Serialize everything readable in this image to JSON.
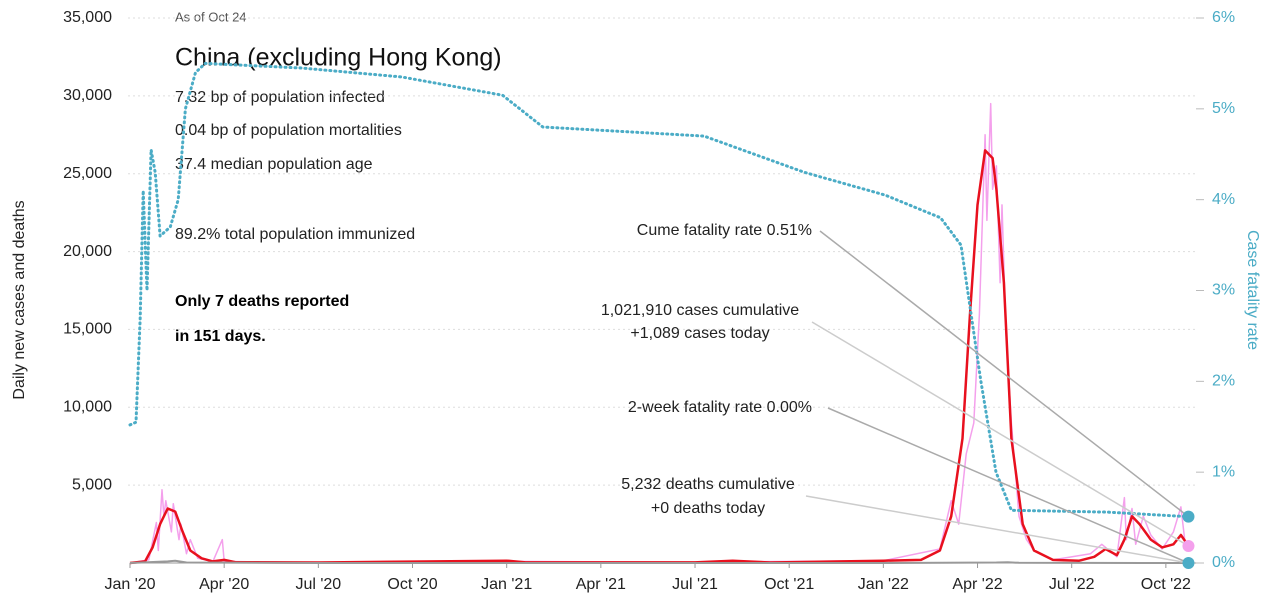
{
  "chart_data": {
    "type": "line",
    "title": "China (excluding Hong Kong)",
    "subtitle": "As of Oct 24",
    "ylabel": "Daily new cases and deaths",
    "y2label": "Case fatality rate",
    "stats": [
      "7.32 bp of population infected",
      "0.04 bp of population mortalities",
      "37.4 median population age",
      "89.2% total population immunized"
    ],
    "note": [
      "Only 7 deaths reported",
      "in 151 days."
    ],
    "annotations": [
      "Cume fatality rate 0.51%",
      "1,021,910 cases cumulative",
      "+1,089 cases today",
      "2-week fatality rate 0.00%",
      "5,232 deaths cumulative",
      "+0 deaths today"
    ],
    "xlim": [
      2020.0,
      2022.83
    ],
    "xticks": [
      {
        "value": 2020.0,
        "label": "Jan '20"
      },
      {
        "value": 2020.25,
        "label": "Apr '20"
      },
      {
        "value": 2020.5,
        "label": "Jul '20"
      },
      {
        "value": 2020.75,
        "label": "Oct '20"
      },
      {
        "value": 2021.0,
        "label": "Jan '21"
      },
      {
        "value": 2021.25,
        "label": "Apr '21"
      },
      {
        "value": 2021.5,
        "label": "Jul '21"
      },
      {
        "value": 2021.75,
        "label": "Oct '21"
      },
      {
        "value": 2022.0,
        "label": "Jan '22"
      },
      {
        "value": 2022.25,
        "label": "Apr '22"
      },
      {
        "value": 2022.5,
        "label": "Jul '22"
      },
      {
        "value": 2022.75,
        "label": "Oct '22"
      }
    ],
    "ylim": [
      0,
      35000
    ],
    "yticks": [
      {
        "value": 5000,
        "label": "5,000"
      },
      {
        "value": 10000,
        "label": "10,000"
      },
      {
        "value": 15000,
        "label": "15,000"
      },
      {
        "value": 20000,
        "label": "20,000"
      },
      {
        "value": 25000,
        "label": "25,000"
      },
      {
        "value": 30000,
        "label": "30,000"
      },
      {
        "value": 35000,
        "label": "35,000"
      }
    ],
    "y2lim": [
      0,
      6
    ],
    "y2ticks": [
      {
        "value": 0,
        "label": "0%"
      },
      {
        "value": 1,
        "label": "1%"
      },
      {
        "value": 2,
        "label": "2%"
      },
      {
        "value": 3,
        "label": "3%"
      },
      {
        "value": 4,
        "label": "4%"
      },
      {
        "value": 5,
        "label": "5%"
      },
      {
        "value": 6,
        "label": "6%"
      }
    ],
    "grid": true,
    "series": [
      {
        "color": "#f4a0ec",
        "width": 1.5,
        "axis": "y",
        "x": [
          2020.0,
          2020.05,
          2020.07,
          2020.075,
          2020.085,
          2020.09,
          2020.095,
          2020.11,
          2020.115,
          2020.13,
          2020.135,
          2020.15,
          2020.16,
          2020.18,
          2020.22,
          2020.245,
          2020.25,
          2020.5,
          2021.0,
          2021.5,
          2022.0,
          2022.15,
          2022.18,
          2022.2,
          2022.22,
          2022.24,
          2022.255,
          2022.27,
          2022.275,
          2022.285,
          2022.29,
          2022.3,
          2022.31,
          2022.315,
          2022.325,
          2022.34,
          2022.36,
          2022.38,
          2022.4,
          2022.45,
          2022.55,
          2022.58,
          2022.62,
          2022.64,
          2022.645,
          2022.66,
          2022.67,
          2022.69,
          2022.71,
          2022.74,
          2022.77,
          2022.79,
          2022.8,
          2022.81
        ],
        "values": [
          0,
          200,
          2600,
          800,
          4700,
          3000,
          4000,
          2000,
          3800,
          1500,
          2500,
          600,
          1500,
          300,
          100,
          1500,
          100,
          20,
          100,
          50,
          150,
          900,
          4000,
          2500,
          7000,
          9000,
          16000,
          27500,
          22000,
          29500,
          24000,
          25500,
          18000,
          23000,
          15000,
          9000,
          3000,
          1500,
          800,
          200,
          600,
          1200,
          400,
          4200,
          1500,
          3500,
          1200,
          3000,
          1800,
          900,
          2000,
          3600,
          1500,
          1089
        ]
      },
      {
        "color": "#e8101e",
        "width": 2.5,
        "axis": "y",
        "x": [
          2020.0,
          2020.04,
          2020.06,
          2020.08,
          2020.1,
          2020.12,
          2020.14,
          2020.16,
          2020.19,
          2020.22,
          2020.25,
          2020.28,
          2020.5,
          2021.0,
          2021.05,
          2021.5,
          2021.6,
          2021.7,
          2022.0,
          2022.1,
          2022.15,
          2022.18,
          2022.21,
          2022.23,
          2022.25,
          2022.27,
          2022.29,
          2022.3,
          2022.32,
          2022.34,
          2022.37,
          2022.4,
          2022.45,
          2022.52,
          2022.56,
          2022.59,
          2022.62,
          2022.64,
          2022.66,
          2022.68,
          2022.71,
          2022.74,
          2022.77,
          2022.79,
          2022.81
        ],
        "values": [
          0,
          100,
          1000,
          2500,
          3500,
          3300,
          2000,
          800,
          300,
          100,
          200,
          50,
          30,
          150,
          40,
          40,
          150,
          30,
          150,
          200,
          800,
          3000,
          8000,
          16000,
          23000,
          26500,
          26000,
          24000,
          18000,
          8000,
          2500,
          800,
          200,
          150,
          400,
          900,
          500,
          1500,
          3000,
          2500,
          1500,
          1000,
          1200,
          1800,
          1089
        ]
      },
      {
        "color": "#999999",
        "width": 2,
        "axis": "y",
        "x": [
          2020.0,
          2020.1,
          2020.12,
          2020.15,
          2020.5,
          2021.0,
          2022.0,
          2022.3,
          2022.33,
          2022.36,
          2022.81
        ],
        "values": [
          0,
          100,
          150,
          30,
          0,
          0,
          0,
          30,
          50,
          10,
          0
        ]
      },
      {
        "color": "#4bacc6",
        "width": 3,
        "dash": true,
        "axis": "y2",
        "x": [
          2020.0,
          2020.016,
          2020.027,
          2020.035,
          2020.045,
          2020.056,
          2020.067,
          2020.08,
          2020.107,
          2020.128,
          2020.147,
          2020.174,
          2020.2,
          2020.455,
          2020.722,
          2020.989,
          2021.096,
          2021.524,
          2021.791,
          2022.005,
          2022.152,
          2022.206,
          2022.259,
          2022.299,
          2022.34,
          2022.594,
          2022.81
        ],
        "values": [
          1.52,
          1.55,
          2.7,
          4.1,
          3.0,
          4.55,
          4.3,
          3.6,
          3.7,
          4.0,
          5.0,
          5.4,
          5.5,
          5.45,
          5.35,
          5.15,
          4.8,
          4.7,
          4.3,
          4.05,
          3.8,
          3.5,
          2.0,
          1.0,
          0.58,
          0.56,
          0.51
        ]
      }
    ]
  }
}
